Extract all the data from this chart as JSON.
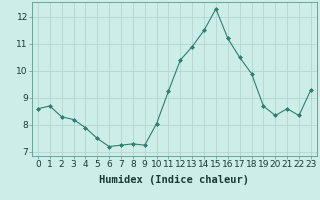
{
  "x": [
    0,
    1,
    2,
    3,
    4,
    5,
    6,
    7,
    8,
    9,
    10,
    11,
    12,
    13,
    14,
    15,
    16,
    17,
    18,
    19,
    20,
    21,
    22,
    23
  ],
  "y": [
    8.6,
    8.7,
    8.3,
    8.2,
    7.9,
    7.5,
    7.2,
    7.25,
    7.3,
    7.25,
    8.05,
    9.25,
    10.4,
    10.9,
    11.5,
    12.3,
    11.2,
    10.5,
    9.9,
    8.7,
    8.35,
    8.6,
    8.35,
    9.3
  ],
  "line_color": "#2e7d72",
  "marker": "D",
  "marker_size": 2.0,
  "bg_color": "#cdeee8",
  "grid_color": "#aed4cc",
  "xlabel": "Humidex (Indice chaleur)",
  "ylim": [
    6.85,
    12.55
  ],
  "xlim": [
    -0.5,
    23.5
  ],
  "yticks": [
    7,
    8,
    9,
    10,
    11,
    12
  ],
  "xticks": [
    0,
    1,
    2,
    3,
    4,
    5,
    6,
    7,
    8,
    9,
    10,
    11,
    12,
    13,
    14,
    15,
    16,
    17,
    18,
    19,
    20,
    21,
    22,
    23
  ],
  "tick_label_fontsize": 6.5,
  "xlabel_fontsize": 7.5
}
